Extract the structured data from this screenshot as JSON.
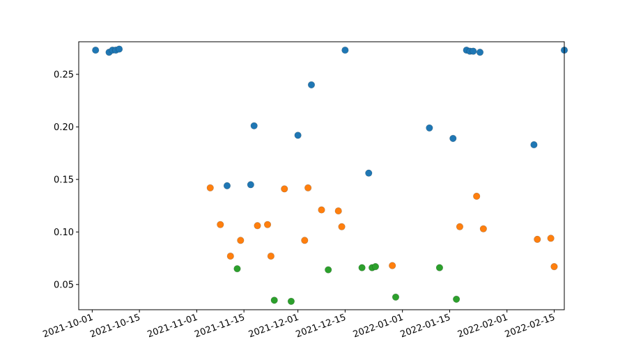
{
  "chart_data": {
    "type": "scatter",
    "title": "",
    "xlabel": "",
    "ylabel": "",
    "x_tick_labels": [
      "2021-10-01",
      "2021-10-15",
      "2021-11-01",
      "2021-11-15",
      "2021-12-01",
      "2021-12-15",
      "2022-01-01",
      "2022-01-15",
      "2022-02-01",
      "2022-02-15"
    ],
    "y_tick_labels": [
      "0.05",
      "0.10",
      "0.15",
      "0.20",
      "0.25"
    ],
    "y_ticks": [
      0.05,
      0.1,
      0.15,
      0.2,
      0.25
    ],
    "xlim": [
      "2021-09-27",
      "2022-02-18"
    ],
    "ylim": [
      0.026,
      0.281
    ],
    "grid": false,
    "legend": "none",
    "series": [
      {
        "color": "#1f77b4",
        "points": [
          {
            "x": "2021-10-02",
            "y": 0.273
          },
          {
            "x": "2021-10-06",
            "y": 0.271
          },
          {
            "x": "2021-10-07",
            "y": 0.273
          },
          {
            "x": "2021-10-08",
            "y": 0.273
          },
          {
            "x": "2021-10-09",
            "y": 0.274
          },
          {
            "x": "2021-11-10",
            "y": 0.144
          },
          {
            "x": "2021-11-17",
            "y": 0.145
          },
          {
            "x": "2021-11-18",
            "y": 0.201
          },
          {
            "x": "2021-12-01",
            "y": 0.192
          },
          {
            "x": "2021-12-05",
            "y": 0.24
          },
          {
            "x": "2021-12-15",
            "y": 0.273
          },
          {
            "x": "2021-12-22",
            "y": 0.156
          },
          {
            "x": "2022-01-09",
            "y": 0.199
          },
          {
            "x": "2022-01-16",
            "y": 0.189
          },
          {
            "x": "2022-01-20",
            "y": 0.273
          },
          {
            "x": "2022-01-21",
            "y": 0.272
          },
          {
            "x": "2022-01-22",
            "y": 0.272
          },
          {
            "x": "2022-01-24",
            "y": 0.271
          },
          {
            "x": "2022-02-09",
            "y": 0.183
          },
          {
            "x": "2022-02-18",
            "y": 0.273
          }
        ]
      },
      {
        "color": "#ff7f0e",
        "points": [
          {
            "x": "2021-11-05",
            "y": 0.142
          },
          {
            "x": "2021-11-08",
            "y": 0.107
          },
          {
            "x": "2021-11-11",
            "y": 0.077
          },
          {
            "x": "2021-11-14",
            "y": 0.092
          },
          {
            "x": "2021-11-19",
            "y": 0.106
          },
          {
            "x": "2021-11-22",
            "y": 0.107
          },
          {
            "x": "2021-11-23",
            "y": 0.077
          },
          {
            "x": "2021-11-27",
            "y": 0.141
          },
          {
            "x": "2021-12-03",
            "y": 0.092
          },
          {
            "x": "2021-12-04",
            "y": 0.142
          },
          {
            "x": "2021-12-08",
            "y": 0.121
          },
          {
            "x": "2021-12-13",
            "y": 0.12
          },
          {
            "x": "2021-12-14",
            "y": 0.105
          },
          {
            "x": "2021-12-29",
            "y": 0.068
          },
          {
            "x": "2022-01-18",
            "y": 0.105
          },
          {
            "x": "2022-01-23",
            "y": 0.134
          },
          {
            "x": "2022-01-25",
            "y": 0.103
          },
          {
            "x": "2022-02-10",
            "y": 0.093
          },
          {
            "x": "2022-02-14",
            "y": 0.094
          },
          {
            "x": "2022-02-15",
            "y": 0.067
          }
        ]
      },
      {
        "color": "#2ca02c",
        "points": [
          {
            "x": "2021-11-13",
            "y": 0.065
          },
          {
            "x": "2021-11-24",
            "y": 0.035
          },
          {
            "x": "2021-11-29",
            "y": 0.034
          },
          {
            "x": "2021-12-10",
            "y": 0.064
          },
          {
            "x": "2021-12-20",
            "y": 0.066
          },
          {
            "x": "2021-12-23",
            "y": 0.066
          },
          {
            "x": "2021-12-24",
            "y": 0.067
          },
          {
            "x": "2021-12-30",
            "y": 0.038
          },
          {
            "x": "2022-01-12",
            "y": 0.066
          },
          {
            "x": "2022-01-17",
            "y": 0.036
          }
        ]
      }
    ]
  }
}
